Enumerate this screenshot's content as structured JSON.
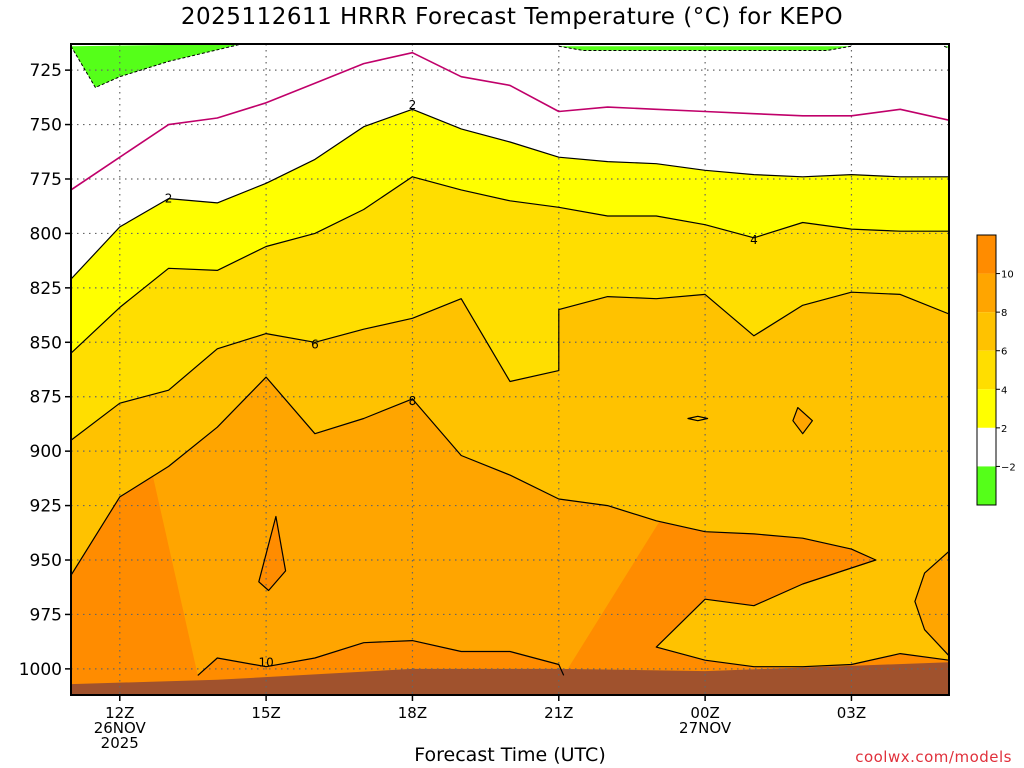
{
  "title": "2025112611 HRRR Forecast Temperature (°C) for KEPO",
  "xlabel": "Forecast Time (UTC)",
  "credit": "coolwx.com/models",
  "chart_data": {
    "type": "contour",
    "variable": "Temperature (°C)",
    "y_axis": {
      "label": "",
      "unit": "hPa",
      "range": [
        1012,
        713
      ],
      "ticks": [
        725,
        750,
        775,
        800,
        825,
        850,
        875,
        900,
        925,
        950,
        975,
        1000
      ]
    },
    "x_axis": {
      "label": "Forecast Time (UTC)",
      "range_hours": [
        11,
        29
      ],
      "ticks": [
        {
          "hour": 12,
          "lines": [
            "12Z",
            "26NOV",
            "2025"
          ]
        },
        {
          "hour": 15,
          "lines": [
            "15Z"
          ]
        },
        {
          "hour": 18,
          "lines": [
            "18Z"
          ]
        },
        {
          "hour": 21,
          "lines": [
            "21Z"
          ]
        },
        {
          "hour": 24,
          "lines": [
            "00Z",
            "27NOV"
          ]
        },
        {
          "hour": 27,
          "lines": [
            "03Z"
          ]
        }
      ]
    },
    "grid": true,
    "legend_position": "right",
    "colorbar": [
      {
        "range": [
          -4,
          -2
        ],
        "color": "#55ff19"
      },
      {
        "range": [
          -2,
          2
        ],
        "color": "#ffffff"
      },
      {
        "range": [
          2,
          4
        ],
        "color": "#ffff00"
      },
      {
        "range": [
          4,
          6
        ],
        "color": "#ffde00"
      },
      {
        "range": [
          6,
          8
        ],
        "color": "#ffc200"
      },
      {
        "range": [
          8,
          10
        ],
        "color": "#ffa500"
      },
      {
        "range": [
          10,
          12
        ],
        "color": "#ff8c00"
      }
    ],
    "colorbar_labels": [
      "10",
      "8",
      "6",
      "4",
      "2",
      "−2"
    ],
    "terrain_color": "#a0522d",
    "contours": {
      "minus2": [
        {
          "closed": false,
          "points": [
            [
              11,
              714
            ],
            [
              11.5,
              733
            ],
            [
              12,
              728
            ],
            [
              13,
              721
            ],
            [
              14.5,
              713
            ]
          ]
        },
        {
          "closed": false,
          "points": [
            [
              21,
              714
            ],
            [
              21.5,
              716
            ],
            [
              23,
              716
            ],
            [
              24,
              716
            ],
            [
              26.5,
              716
            ],
            [
              27,
              714
            ]
          ]
        },
        {
          "closed": false,
          "points": [
            [
              28.9,
              714
            ],
            [
              29,
              715
            ]
          ]
        }
      ],
      "zero": [
        {
          "closed": false,
          "points": [
            [
              11,
              780
            ],
            [
              12,
              765
            ],
            [
              13,
              750
            ],
            [
              14,
              747
            ],
            [
              15,
              740
            ],
            [
              16,
              731
            ],
            [
              17,
              722
            ],
            [
              18,
              717
            ],
            [
              19,
              728
            ],
            [
              20,
              732
            ],
            [
              21,
              744
            ],
            [
              22,
              742
            ],
            [
              23,
              743
            ],
            [
              24,
              744
            ],
            [
              25,
              745
            ],
            [
              26,
              746
            ],
            [
              27,
              746
            ],
            [
              28,
              743
            ],
            [
              29,
              748
            ]
          ]
        }
      ],
      "plus2": [
        {
          "closed": false,
          "points": [
            [
              11,
              821
            ],
            [
              12,
              797
            ],
            [
              13,
              784
            ],
            [
              14,
              786
            ],
            [
              15,
              777
            ],
            [
              16,
              766
            ],
            [
              17,
              751
            ],
            [
              18,
              743
            ],
            [
              19,
              752
            ],
            [
              20,
              758
            ],
            [
              21,
              765
            ],
            [
              22,
              767
            ],
            [
              23,
              768
            ],
            [
              24,
              771
            ],
            [
              25,
              773
            ],
            [
              26,
              774
            ],
            [
              27,
              773
            ],
            [
              28,
              774
            ],
            [
              29,
              774
            ]
          ]
        }
      ],
      "plus4": [
        {
          "closed": false,
          "points": [
            [
              11,
              855
            ],
            [
              12,
              834
            ],
            [
              13,
              816
            ],
            [
              14,
              817
            ],
            [
              15,
              806
            ],
            [
              16,
              800
            ],
            [
              17,
              789
            ],
            [
              18,
              774
            ],
            [
              19,
              780
            ],
            [
              20,
              785
            ],
            [
              21,
              788
            ],
            [
              22,
              792
            ],
            [
              23,
              792
            ],
            [
              24,
              796
            ],
            [
              25,
              802
            ],
            [
              26,
              795
            ],
            [
              27,
              798
            ],
            [
              28,
              799
            ],
            [
              29,
              799
            ]
          ]
        }
      ],
      "plus6": [
        {
          "closed": false,
          "points": [
            [
              11,
              895
            ],
            [
              12,
              878
            ],
            [
              13,
              872
            ],
            [
              14,
              853
            ],
            [
              15,
              846
            ],
            [
              16,
              850
            ],
            [
              17,
              844
            ],
            [
              18,
              839
            ],
            [
              19,
              830
            ],
            [
              20,
              868
            ],
            [
              21,
              863
            ],
            [
              21,
              835
            ],
            [
              22,
              829
            ],
            [
              23,
              830
            ],
            [
              24,
              828
            ],
            [
              25,
              847
            ],
            [
              26,
              833
            ],
            [
              27,
              827
            ],
            [
              28,
              828
            ],
            [
              29,
              837
            ]
          ]
        },
        {
          "closed": true,
          "points": [
            [
              23.85,
              884
            ],
            [
              24.05,
              885
            ],
            [
              23.85,
              886
            ],
            [
              23.65,
              885
            ]
          ]
        }
      ],
      "plus8": [
        {
          "closed": false,
          "points": [
            [
              11,
              957
            ],
            [
              12,
              921
            ],
            [
              13,
              907
            ],
            [
              14,
              889
            ],
            [
              15,
              866
            ],
            [
              16,
              892
            ],
            [
              17,
              885
            ],
            [
              18,
              876
            ],
            [
              19,
              902
            ],
            [
              20,
              911
            ],
            [
              21,
              922
            ],
            [
              22,
              925
            ],
            [
              23,
              932
            ],
            [
              24,
              937
            ],
            [
              25,
              938
            ],
            [
              26,
              940
            ],
            [
              27,
              945
            ],
            [
              27.5,
              950
            ],
            [
              26,
              961
            ],
            [
              25,
              971
            ],
            [
              24,
              968
            ],
            [
              23,
              990
            ],
            [
              24,
              996
            ],
            [
              25,
              999
            ],
            [
              26,
              999
            ],
            [
              27,
              998
            ],
            [
              28,
              993
            ],
            [
              29,
              996
            ]
          ]
        },
        {
          "closed": true,
          "points": [
            [
              25.9,
              880
            ],
            [
              26.2,
              886
            ],
            [
              26.0,
              892
            ],
            [
              25.8,
              886
            ]
          ]
        },
        {
          "closed": true,
          "points": [
            [
              29,
              946
            ],
            [
              28.5,
              956
            ],
            [
              28.3,
              969
            ],
            [
              28.5,
              982
            ],
            [
              29,
              994
            ]
          ]
        }
      ],
      "plus10": [
        {
          "closed": false,
          "points": [
            [
              13.6,
              1003
            ],
            [
              14,
              995
            ],
            [
              15,
              999
            ],
            [
              16,
              995
            ],
            [
              17,
              988
            ],
            [
              18,
              987
            ],
            [
              19,
              992
            ],
            [
              20,
              992
            ],
            [
              21,
              998
            ],
            [
              21.1,
              1003
            ]
          ]
        },
        {
          "closed": true,
          "points": [
            [
              14.85,
              960
            ],
            [
              15.2,
              930
            ],
            [
              15.4,
              955
            ],
            [
              15.05,
              964
            ]
          ]
        }
      ]
    },
    "contour_labels": [
      {
        "text": "2",
        "x": 18,
        "y": 741
      },
      {
        "text": "2",
        "x": 13,
        "y": 784
      },
      {
        "text": "4",
        "x": 25,
        "y": 803
      },
      {
        "text": "6",
        "x": 16,
        "y": 851
      },
      {
        "text": "8",
        "x": 18,
        "y": 877
      },
      {
        "text": "10",
        "x": 15,
        "y": 997
      }
    ],
    "surface": [
      [
        11,
        1007
      ],
      [
        14,
        1005
      ],
      [
        18,
        1000
      ],
      [
        21,
        1000
      ],
      [
        24,
        1001
      ],
      [
        26.5,
        999
      ],
      [
        29,
        997
      ]
    ]
  }
}
